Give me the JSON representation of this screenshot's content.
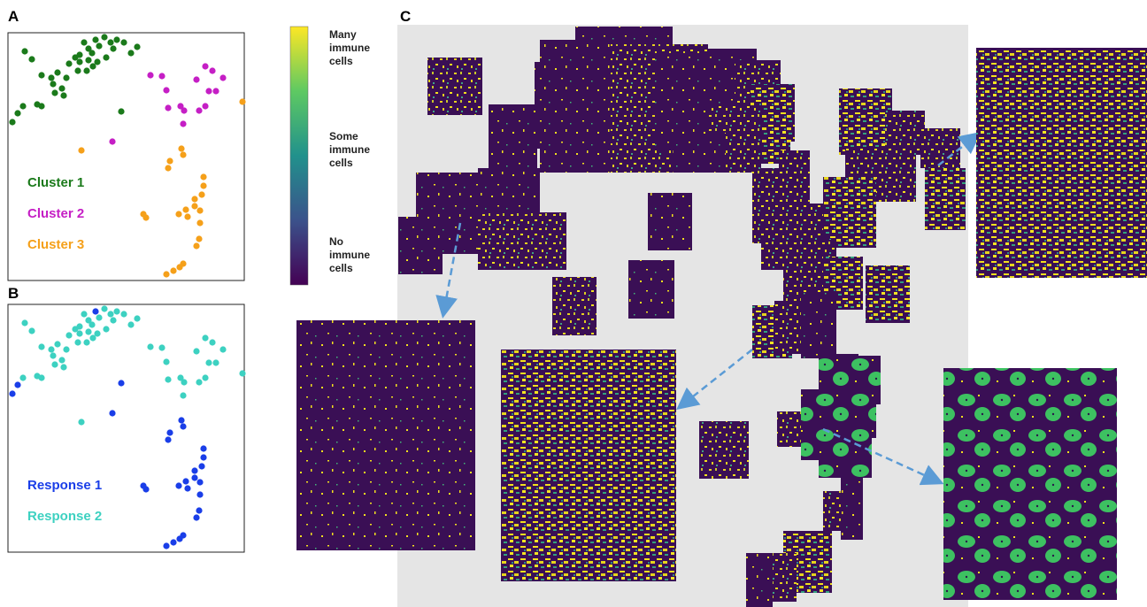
{
  "panel_labels": [
    "A",
    "B",
    "C"
  ],
  "colorbar": {
    "labels": [
      "Many immune cells",
      "Some immune cells",
      "No immune cells"
    ]
  },
  "chart_data": [
    {
      "type": "scatter",
      "xlim": [
        0,
        267
      ],
      "ylim": [
        280,
        0
      ],
      "series": [
        {
          "name": "Cluster 1",
          "color": "#1b7a1b",
          "x": [
            19,
            27,
            49,
            38,
            51,
            53,
            61,
            66,
            69,
            76,
            81,
            86,
            91,
            95,
            99,
            103,
            109,
            111,
            116,
            119,
            123,
            131,
            139,
            146,
            96,
            89,
            79,
            81,
            63,
            17,
            11,
            5,
            33,
            38,
            128,
            56,
            101,
            91
          ],
          "y": [
            21,
            30,
            51,
            48,
            58,
            68,
            63,
            51,
            35,
            28,
            25,
            11,
            18,
            23,
            8,
            15,
            5,
            28,
            11,
            18,
            8,
            11,
            23,
            16,
            38,
            43,
            43,
            33,
            71,
            83,
            91,
            101,
            81,
            83,
            89,
            45,
            33,
            31
          ]
        },
        {
          "name": "Cluster 2",
          "color": "#c51fc5",
          "x": [
            161,
            174,
            179,
            181,
            195,
            198,
            199,
            223,
            231,
            243,
            227,
            235,
            223,
            216,
            118,
            213
          ],
          "y": [
            48,
            49,
            65,
            85,
            83,
            103,
            88,
            38,
            43,
            51,
            66,
            66,
            83,
            88,
            123,
            53
          ]
        },
        {
          "name": "Cluster 3",
          "color": "#f5a01a",
          "x": [
            265,
            83,
            196,
            198,
            183,
            181,
            221,
            221,
            219,
            211,
            211,
            201,
            193,
            153,
            156,
            217,
            217,
            216,
            213,
            198,
            194,
            187,
            179,
            203
          ],
          "y": [
            78,
            133,
            131,
            138,
            145,
            153,
            163,
            173,
            183,
            188,
            196,
            200,
            205,
            205,
            209,
            201,
            215,
            233,
            241,
            261,
            265,
            269,
            273,
            208
          ]
        }
      ]
    },
    {
      "type": "scatter",
      "xlim": [
        0,
        267
      ],
      "ylim": [
        280,
        0
      ],
      "series": [
        {
          "name": "Response 1",
          "color": "#1a3ee8",
          "x": [
            11,
            5,
            128,
            99,
            118,
            196,
            198,
            183,
            181,
            221,
            221,
            219,
            211,
            211,
            201,
            193,
            153,
            156,
            217,
            217,
            216,
            213,
            198,
            194,
            187,
            179,
            203
          ],
          "y": [
            91,
            101,
            89,
            8,
            123,
            131,
            138,
            145,
            153,
            163,
            173,
            183,
            188,
            196,
            200,
            205,
            205,
            209,
            201,
            215,
            233,
            241,
            261,
            265,
            269,
            273,
            208
          ]
        },
        {
          "name": "Response 2",
          "color": "#3dd1c1",
          "x": [
            19,
            27,
            49,
            38,
            51,
            53,
            61,
            66,
            69,
            76,
            81,
            86,
            91,
            95,
            103,
            109,
            111,
            116,
            119,
            123,
            131,
            139,
            146,
            96,
            89,
            79,
            81,
            63,
            17,
            33,
            38,
            56,
            101,
            91,
            161,
            174,
            179,
            181,
            195,
            198,
            199,
            223,
            231,
            243,
            227,
            235,
            223,
            216,
            213,
            265,
            83
          ],
          "y": [
            21,
            30,
            51,
            48,
            58,
            68,
            63,
            51,
            35,
            28,
            25,
            11,
            18,
            23,
            15,
            5,
            28,
            11,
            18,
            8,
            11,
            23,
            16,
            38,
            43,
            43,
            33,
            71,
            83,
            81,
            83,
            45,
            33,
            31,
            48,
            49,
            65,
            85,
            83,
            103,
            88,
            38,
            43,
            51,
            66,
            66,
            83,
            88,
            53,
            78,
            133
          ]
        }
      ]
    }
  ]
}
